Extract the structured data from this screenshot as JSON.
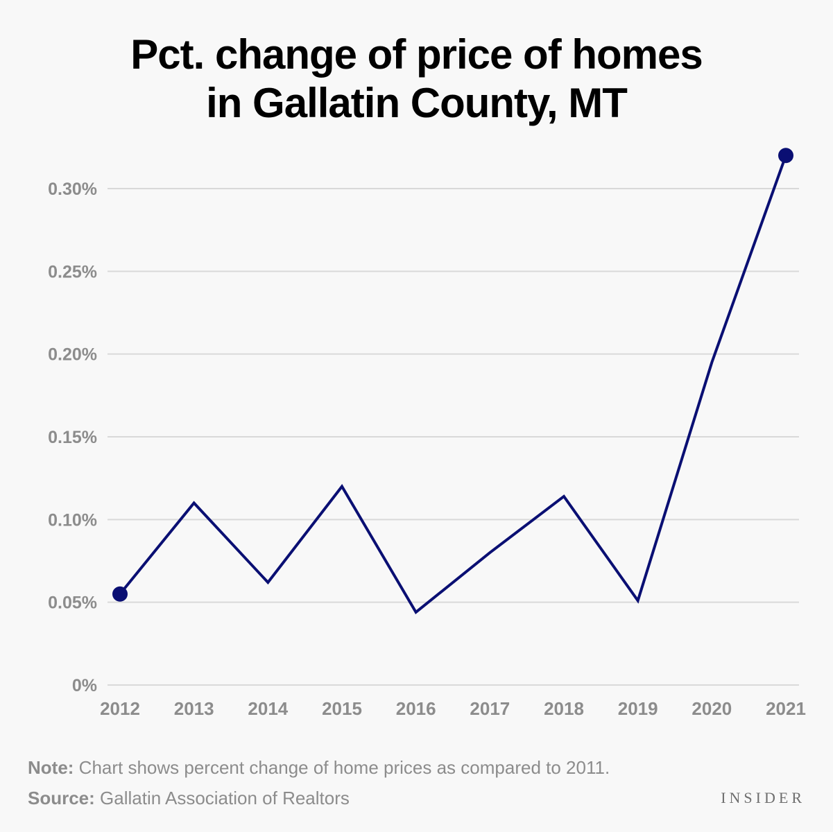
{
  "title": {
    "line1": "Pct. change of price of homes",
    "line2": "in Gallatin County, MT"
  },
  "chart_data": {
    "type": "line",
    "title": "Pct. change of price of homes in Gallatin County, MT",
    "xlabel": "",
    "ylabel": "",
    "categories": [
      "2012",
      "2013",
      "2014",
      "2015",
      "2016",
      "2017",
      "2018",
      "2019",
      "2020",
      "2021"
    ],
    "series": [
      {
        "name": "Pct. change of home price",
        "values": [
          0.055,
          0.11,
          0.062,
          0.12,
          0.044,
          0.08,
          0.114,
          0.051,
          0.195,
          0.32
        ],
        "color": "#0a0f73"
      }
    ],
    "ylim": [
      0,
      0.3
    ],
    "yticks": [
      0,
      0.05,
      0.1,
      0.15,
      0.2,
      0.25,
      0.3
    ],
    "ytick_labels": [
      "0%",
      "0.05%",
      "0.10%",
      "0.15%",
      "0.20%",
      "0.25%",
      "0.30%"
    ],
    "grid": true,
    "endpoint_markers": true
  },
  "footer": {
    "note_label": "Note:",
    "note_text": " Chart shows percent change of home prices as compared to 2011.",
    "source_label": "Source:",
    "source_text": " Gallatin Association of Realtors",
    "brand": "INSIDER"
  },
  "colors": {
    "line": "#0a0f73",
    "grid": "#d9d9d9",
    "tick_text": "#8c8c8c",
    "background": "#f8f8f8"
  }
}
